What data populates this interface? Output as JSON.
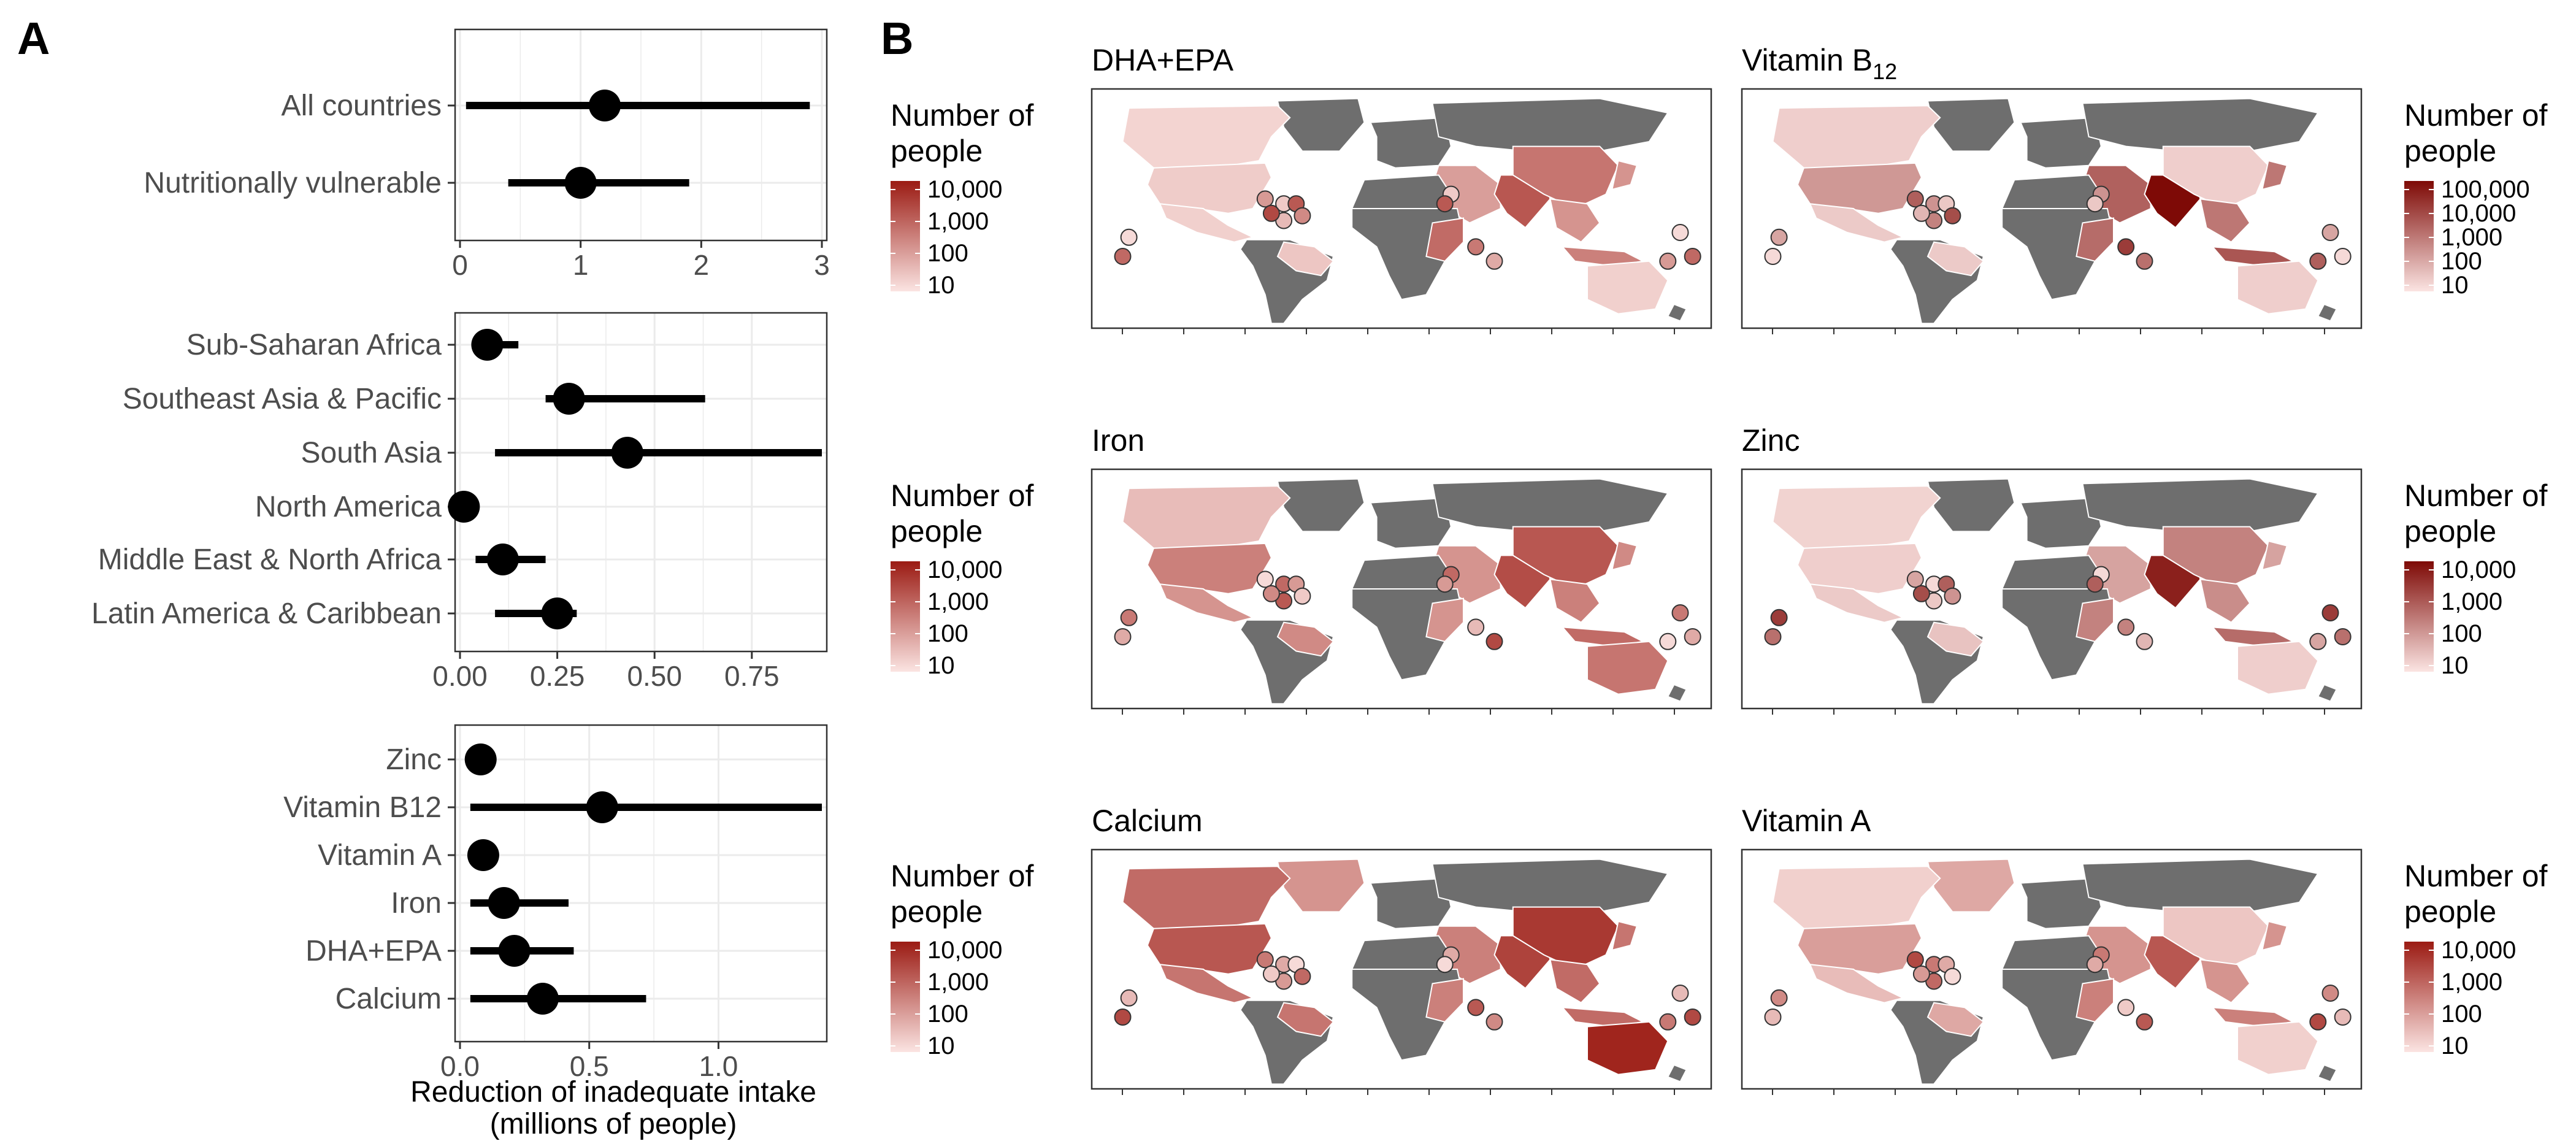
{
  "panel_a_letter": "A",
  "panel_b_letter": "B",
  "chart_data": [
    {
      "type": "scatter",
      "panel": "A",
      "categories": [
        "All countries",
        "Nutritionally vulnerable"
      ],
      "series": [
        {
          "values": [
            1.2,
            1.0
          ],
          "lower": [
            0.05,
            0.4
          ],
          "upper": [
            2.9,
            1.9
          ]
        }
      ],
      "xlim": [
        0,
        3
      ],
      "xticks": [
        0,
        1,
        2,
        3
      ],
      "xtick_labels": [
        "0",
        "1",
        "2",
        "3"
      ],
      "grid": true
    },
    {
      "type": "scatter",
      "panel": "A",
      "categories": [
        "Sub-Saharan Africa",
        "Southeast Asia & Pacific",
        "South Asia",
        "North America",
        "Middle East & North Africa",
        "Latin America & Caribbean"
      ],
      "series": [
        {
          "values": [
            0.07,
            0.28,
            0.43,
            0.01,
            0.11,
            0.25
          ],
          "lower": [
            0.03,
            0.22,
            0.09,
            0.0,
            0.04,
            0.09
          ],
          "upper": [
            0.15,
            0.63,
            0.93,
            0.03,
            0.22,
            0.3
          ]
        }
      ],
      "xlim": [
        0,
        0.93
      ],
      "xticks": [
        0,
        0.25,
        0.5,
        0.75
      ],
      "xtick_labels": [
        "0.00",
        "0.25",
        "0.50",
        "0.75"
      ],
      "grid": true
    },
    {
      "type": "scatter",
      "panel": "A",
      "categories": [
        "Zinc",
        "Vitamin B12",
        "Vitamin A",
        "Iron",
        "DHA+EPA",
        "Calcium"
      ],
      "series": [
        {
          "values": [
            0.08,
            0.55,
            0.09,
            0.17,
            0.21,
            0.32
          ],
          "lower": [
            0.04,
            0.04,
            0.06,
            0.04,
            0.04,
            0.04
          ],
          "upper": [
            0.14,
            1.4,
            0.12,
            0.42,
            0.44,
            0.72
          ]
        }
      ],
      "xlim": [
        0,
        1.4
      ],
      "xticks": [
        0,
        0.5,
        1.0
      ],
      "xtick_labels": [
        "0.0",
        "0.5",
        "1.0"
      ],
      "xlabel": "Reduction of inadequate intake",
      "xlabel_line2": "(millions of people)",
      "grid": true
    }
  ],
  "maps": [
    {
      "title": "DHA+EPA",
      "legend_title_1": "Number of",
      "legend_title_2": "people",
      "legend_labels": [
        "10,000",
        "1,000",
        "100",
        "10"
      ],
      "colors": {
        "low": "#fbe4e2",
        "high": "#9b1b13"
      }
    },
    {
      "title": "Vitamin B",
      "title_sub": "12",
      "legend_title_1": "Number of",
      "legend_title_2": "people",
      "legend_labels": [
        "100,000",
        "10,000",
        "1,000",
        "100",
        "10"
      ],
      "colors": {
        "low": "#fbe4e2",
        "high": "#7e0a06"
      }
    },
    {
      "title": "Iron",
      "legend_title_1": "Number of",
      "legend_title_2": "people",
      "legend_labels": [
        "10,000",
        "1,000",
        "100",
        "10"
      ],
      "colors": {
        "low": "#fbe4e2",
        "high": "#9b1b13"
      }
    },
    {
      "title": "Zinc",
      "legend_title_1": "Number of",
      "legend_title_2": "people",
      "legend_labels": [
        "10,000",
        "1,000",
        "100",
        "10"
      ],
      "colors": {
        "low": "#fbe4e2",
        "high": "#7e0a06"
      }
    },
    {
      "title": "Calcium",
      "legend_title_1": "Number of",
      "legend_title_2": "people",
      "legend_labels": [
        "10,000",
        "1,000",
        "100",
        "10"
      ],
      "colors": {
        "low": "#fbe4e2",
        "high": "#9b1b13"
      }
    },
    {
      "title": "Vitamin A",
      "legend_title_1": "Number of",
      "legend_title_2": "people",
      "legend_labels": [
        "10,000",
        "1,000",
        "100",
        "10"
      ],
      "colors": {
        "low": "#fbe4e2",
        "high": "#9b1b13"
      }
    }
  ],
  "colors": {
    "land_no_data": "#6e6e6e",
    "point": "#000000",
    "grid": "#ebebeb",
    "axis": "#333333"
  }
}
